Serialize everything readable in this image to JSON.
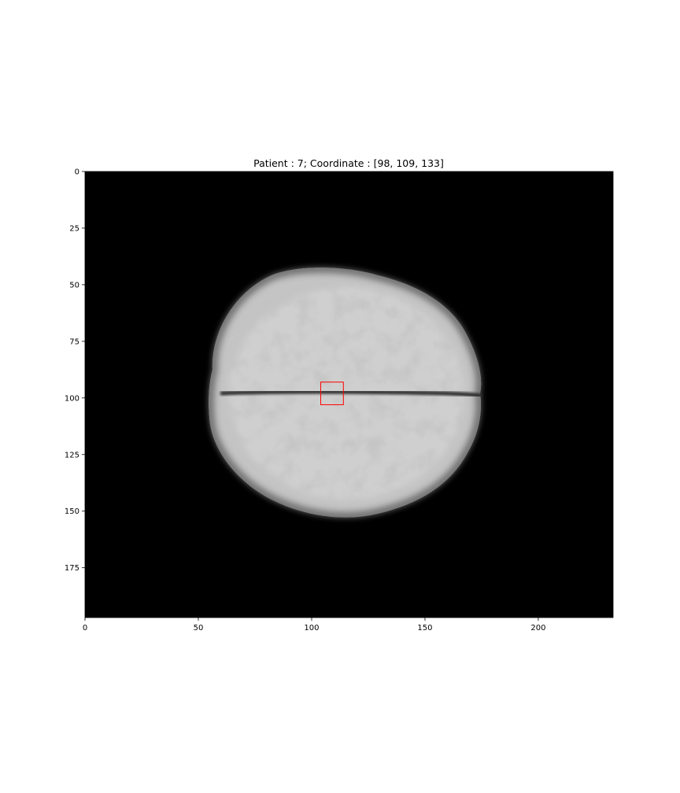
{
  "title": "Patient : 7; Coordinate : [98, 109, 133]",
  "image": {
    "description_name": "axial-brain-mri-slice",
    "extent_x": [
      0,
      233
    ],
    "extent_y": [
      0,
      197
    ],
    "background": "#000000"
  },
  "axes": {
    "x_ticks": [
      "0",
      "50",
      "100",
      "150",
      "200"
    ],
    "x_tick_values": [
      0,
      50,
      100,
      150,
      200
    ],
    "y_ticks": [
      "0",
      "25",
      "50",
      "75",
      "100",
      "125",
      "150",
      "175"
    ],
    "y_tick_values": [
      0,
      25,
      50,
      75,
      100,
      125,
      150,
      175
    ]
  },
  "annotation": {
    "box_color": "#ff0000",
    "box_x": [
      104,
      114
    ],
    "box_y": [
      93,
      103
    ]
  }
}
